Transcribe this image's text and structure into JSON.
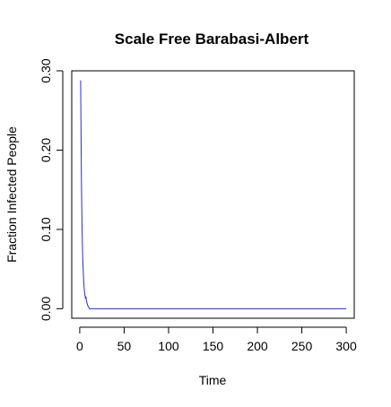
{
  "chart_data": {
    "type": "line",
    "title": "Scale Free Barabasi-Albert",
    "xlabel": "Time",
    "ylabel": "Fraction Infected People",
    "xlim": [
      -9,
      309
    ],
    "ylim": [
      -0.012,
      0.3
    ],
    "x_ticks": [
      0,
      50,
      100,
      150,
      200,
      250,
      300
    ],
    "x_tick_labels": [
      "0",
      "50",
      "100",
      "150",
      "200",
      "250",
      "300"
    ],
    "y_ticks": [
      0.0,
      0.1,
      0.2,
      0.3
    ],
    "y_tick_labels": [
      "0.00",
      "0.10",
      "0.20",
      "0.30"
    ],
    "grid": false,
    "legend": "none",
    "series": [
      {
        "color": "#2b2bd0",
        "x": [
          1,
          1.5,
          2,
          2.5,
          3,
          3.5,
          4,
          4.5,
          5,
          5.5,
          6,
          6.5,
          7,
          7.5,
          8,
          8.5,
          9,
          9.5,
          10,
          10.5,
          11,
          12,
          15,
          20,
          50,
          100,
          150,
          200,
          250,
          300
        ],
        "y": [
          0.288,
          0.215,
          0.15,
          0.11,
          0.08,
          0.06,
          0.045,
          0.034,
          0.026,
          0.02,
          0.016,
          0.013,
          0.015,
          0.01,
          0.008,
          0.006,
          0.004,
          0.003,
          0.002,
          0.001,
          0.0,
          0.0,
          0.0,
          0.0,
          0.0,
          0.0,
          0.0,
          0.0,
          0.0,
          0.0
        ]
      }
    ]
  }
}
